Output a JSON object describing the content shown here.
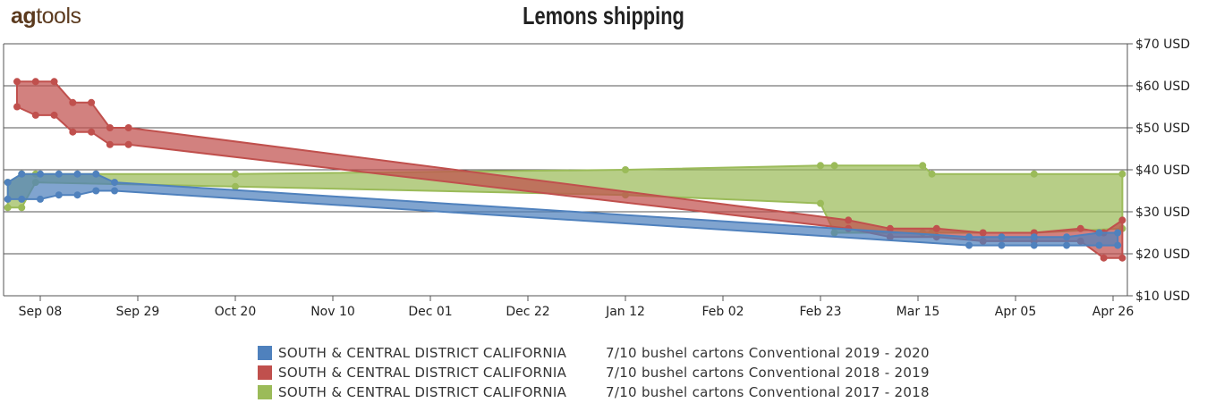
{
  "logo": {
    "part1": "ag",
    "part2": "tools"
  },
  "chart_data": {
    "type": "area",
    "title": "Lemons shipping",
    "xlabel": "",
    "ylabel": "",
    "x_tick_labels": [
      "Sep 08",
      "Sep 29",
      "Oct 20",
      "Nov 10",
      "Dec 01",
      "Dec 22",
      "Jan 12",
      "Feb 02",
      "Feb 23",
      "Mar 15",
      "Apr 05",
      "Apr 26"
    ],
    "y_tick_labels": [
      "$10 USD",
      "$20 USD",
      "$30 USD",
      "$40 USD",
      "$50 USD",
      "$60 USD",
      "$70 USD"
    ],
    "ylim": [
      10,
      70
    ],
    "y_ticks": [
      10,
      20,
      30,
      40,
      50,
      60,
      70
    ],
    "grid": true,
    "legend_position": "bottom",
    "series": [
      {
        "name": "SOUTH & CENTRAL DISTRICT CALIFORNIA",
        "product": "7/10 bushel cartons Conventional 2019 - 2020",
        "color": "#4f81bd",
        "x": [
          "2019-09-01",
          "2019-09-04",
          "2019-09-08",
          "2019-09-12",
          "2019-09-16",
          "2019-09-20",
          "2019-09-24",
          "2020-03-26",
          "2020-04-02",
          "2020-04-09",
          "2020-04-16",
          "2020-04-23",
          "2020-04-27"
        ],
        "low": [
          33,
          33,
          33,
          34,
          34,
          35,
          35,
          22,
          22,
          22,
          22,
          22,
          22
        ],
        "high": [
          37,
          39,
          39,
          39,
          39,
          39,
          37,
          24,
          24,
          24,
          24,
          25,
          25
        ]
      },
      {
        "name": "SOUTH & CENTRAL DISTRICT CALIFORNIA",
        "product": "7/10 bushel cartons Conventional 2018 - 2019",
        "color": "#c0504d",
        "x": [
          "2018-09-03",
          "2018-09-07",
          "2018-09-11",
          "2018-09-15",
          "2018-09-19",
          "2018-09-23",
          "2018-09-27",
          "2019-03-01",
          "2019-03-10",
          "2019-03-20",
          "2019-03-30",
          "2019-04-10",
          "2019-04-20",
          "2019-04-25",
          "2019-04-29"
        ],
        "low": [
          55,
          53,
          53,
          49,
          49,
          46,
          46,
          26,
          24,
          24,
          23,
          23,
          23,
          19,
          19
        ],
        "high": [
          61,
          61,
          61,
          56,
          56,
          50,
          50,
          28,
          26,
          26,
          25,
          25,
          26,
          25,
          28
        ]
      },
      {
        "name": "SOUTH & CENTRAL DISTRICT CALIFORNIA",
        "product": "7/10 bushel cartons Conventional 2017 - 2018",
        "color": "#9bbb59",
        "x": [
          "2017-09-01",
          "2017-09-04",
          "2017-09-07",
          "2017-10-20",
          "2018-01-12",
          "2018-02-23",
          "2018-02-26",
          "2018-03-17",
          "2018-03-19",
          "2018-04-10",
          "2018-04-29"
        ],
        "low": [
          31,
          31,
          37,
          36,
          34,
          32,
          25,
          25,
          25,
          25,
          26
        ],
        "high": [
          37,
          39,
          39,
          39,
          40,
          41,
          41,
          41,
          39,
          39,
          39
        ]
      }
    ]
  }
}
